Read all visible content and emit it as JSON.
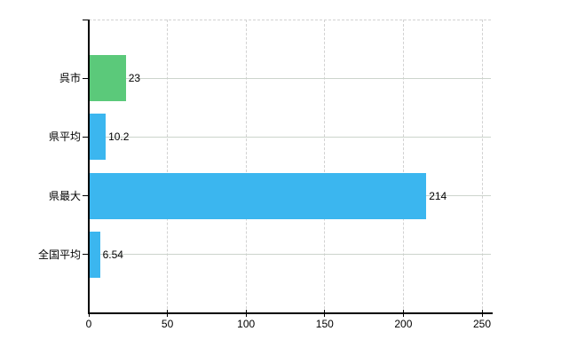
{
  "chart_data": {
    "type": "bar",
    "orientation": "horizontal",
    "title": "",
    "xlabel": "",
    "ylabel": "",
    "categories": [
      "呉市",
      "県平均",
      "県最大",
      "全国平均"
    ],
    "values": [
      23,
      10.2,
      214,
      6.54
    ],
    "value_labels": [
      "23",
      "10.2",
      "214",
      "6.54"
    ],
    "bar_colors": [
      "#5bc97a",
      "#3bb6ef",
      "#3bb6ef",
      "#3bb6ef"
    ],
    "xlim": [
      0,
      250
    ],
    "x_ticks": [
      0,
      50,
      100,
      150,
      200,
      250
    ],
    "x_tick_labels": [
      "0",
      "50",
      "100",
      "150",
      "200",
      "250"
    ],
    "grid": "vertical dashed gridlines at x ticks, solid light horizontal line at each category center, dashed top border",
    "legend": "none"
  },
  "colors": {
    "bar_green": "#5bc97a",
    "bar_blue": "#3bb6ef",
    "axis": "#000000",
    "vertical_gridline": "#d2d2d2",
    "horizontal_gridline": "#ccd4cc",
    "background": "#ffffff",
    "text": "#000000"
  }
}
